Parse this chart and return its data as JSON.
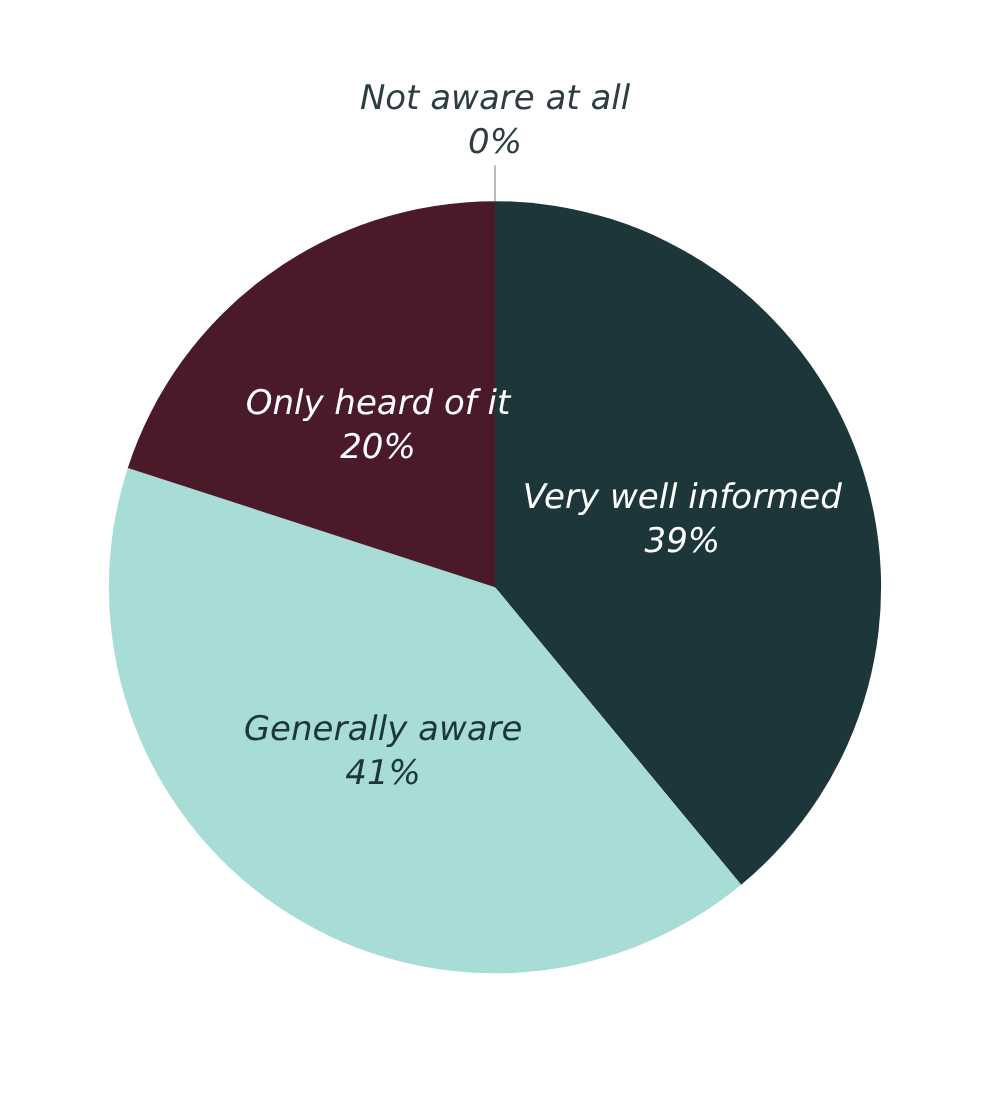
{
  "chart_data": {
    "type": "pie",
    "categories": [
      "Very well informed",
      "Generally aware",
      "Only heard of it",
      "Not aware at all"
    ],
    "values": [
      39,
      41,
      20,
      0
    ],
    "colors": [
      "#1c3639",
      "#a8dcd6",
      "#4a1a28",
      "#9aa3a3"
    ],
    "value_labels": [
      "39%",
      "41%",
      "20%",
      "0%"
    ],
    "legend": false
  }
}
